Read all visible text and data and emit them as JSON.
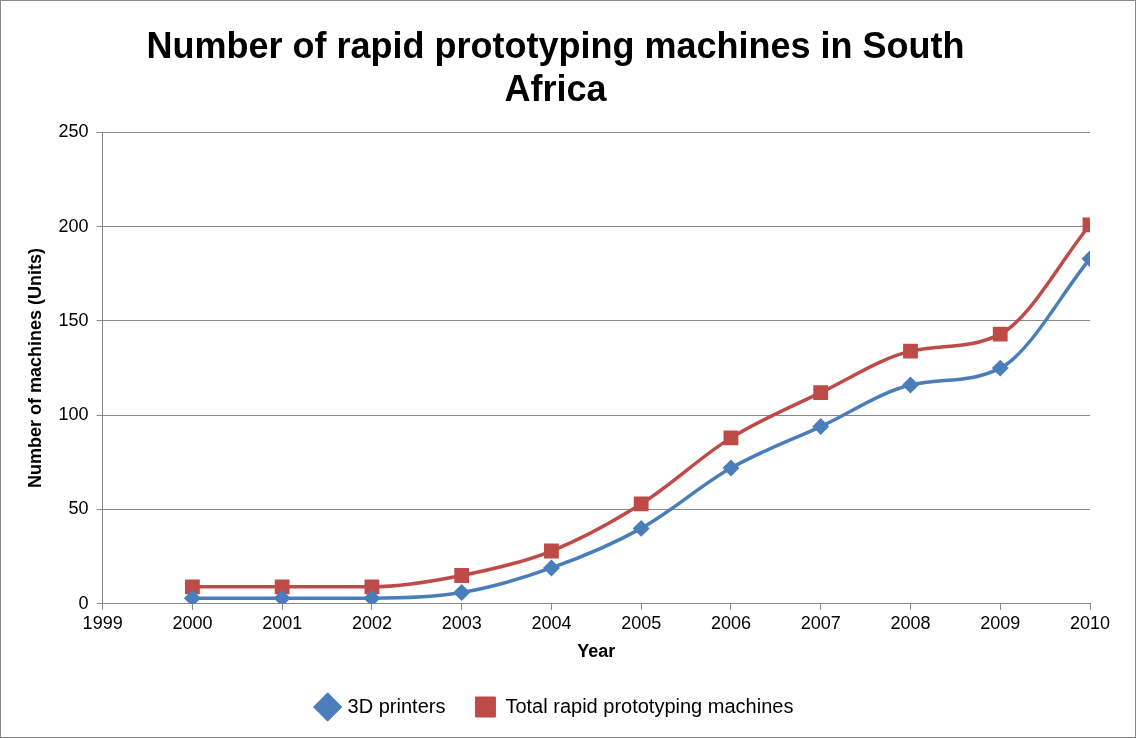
{
  "chart_data": {
    "type": "line",
    "title": "Number of rapid prototyping machines in South Africa",
    "xlabel": "Year",
    "ylabel": "Number of machines (Units)",
    "x": [
      2000,
      2001,
      2002,
      2003,
      2004,
      2005,
      2006,
      2007,
      2008,
      2009,
      2010
    ],
    "series": [
      {
        "name": "3D printers",
        "color": "#4a7ebb",
        "marker": "diamond",
        "values": [
          3,
          3,
          3,
          6,
          19,
          40,
          72,
          94,
          116,
          125,
          183
        ]
      },
      {
        "name": "Total rapid prototyping machines",
        "color": "#be4b48",
        "marker": "square",
        "values": [
          9,
          9,
          9,
          15,
          28,
          53,
          88,
          112,
          134,
          143,
          201
        ]
      }
    ],
    "xlim": [
      1999,
      2010
    ],
    "xticks": [
      1999,
      2000,
      2001,
      2002,
      2003,
      2004,
      2005,
      2006,
      2007,
      2008,
      2009,
      2010
    ],
    "ylim": [
      0,
      250
    ],
    "yticks": [
      0,
      50,
      100,
      150,
      200,
      250
    ],
    "grid": "y",
    "legend": "bottom",
    "line_style": "solid"
  }
}
